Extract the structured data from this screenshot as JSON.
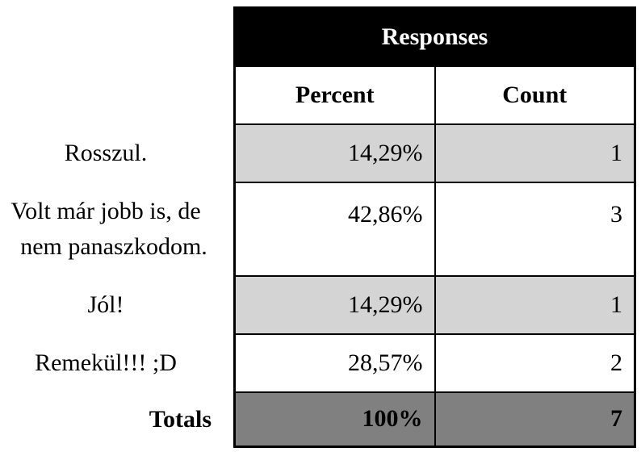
{
  "chart_data": {
    "type": "table",
    "header": "Responses",
    "columns": [
      "Percent",
      "Count"
    ],
    "rows": [
      {
        "label": "Rosszul.",
        "percent": "14,29%",
        "count": "1"
      },
      {
        "label_lines": [
          "Volt már jobb is, de",
          "nem panaszkodom."
        ],
        "percent": "42,86%",
        "count": "3"
      },
      {
        "label": "Jól!",
        "percent": "14,29%",
        "count": "1"
      },
      {
        "label": "Remekül!!! ;D",
        "percent": "28,57%",
        "count": "2"
      }
    ],
    "totals": {
      "label": "Totals",
      "percent": "100%",
      "count": "7"
    },
    "colors": {
      "header_bg": "#000000",
      "shaded_row": "#d4d4d4",
      "totals_row": "#808080"
    }
  }
}
